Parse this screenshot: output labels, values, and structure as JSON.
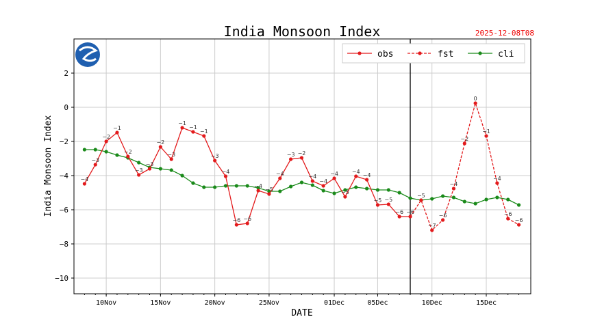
{
  "chart_data": {
    "type": "line",
    "title": "India Monsoon Index",
    "timestamp": "2025-12-08T08",
    "xlabel": "DATE",
    "ylabel": "India Monsoon Index",
    "ylim": [
      -10.92,
      4.0
    ],
    "xlim_days_from_10Nov": [
      -2.97,
      39.1
    ],
    "yticks": [
      2,
      0,
      -2,
      -4,
      -6,
      -8,
      -10
    ],
    "xticks": [
      {
        "day": 0,
        "label": "10Nov"
      },
      {
        "day": 5,
        "label": "15Nov"
      },
      {
        "day": 10,
        "label": "20Nov"
      },
      {
        "day": 15,
        "label": "25Nov"
      },
      {
        "day": 21,
        "label": "01Dec"
      },
      {
        "day": 25,
        "label": "05Dec"
      },
      {
        "day": 30,
        "label": "10Dec"
      },
      {
        "day": 35,
        "label": "15Dec"
      }
    ],
    "grid": true,
    "legend_position": "top-right",
    "vline_day": 28,
    "vline_label_date": "08Dec",
    "series": [
      {
        "name": "obs",
        "color": "#e31a1c",
        "dash": false,
        "start_day": -2,
        "values": [
          -4.48,
          -3.36,
          -2.0,
          -1.48,
          -2.88,
          -3.96,
          -3.6,
          -2.32,
          -3.04,
          -1.2,
          -1.44,
          -1.68,
          -3.12,
          -4.04,
          -6.88,
          -6.8,
          -4.88,
          -5.08,
          -4.16,
          -3.04,
          -2.96,
          -4.32,
          -4.6,
          -4.16,
          -5.24,
          -4.04,
          -4.24,
          -5.72,
          -5.68,
          -6.4,
          -6.4
        ]
      },
      {
        "name": "fst",
        "color": "#e31a1c",
        "dash": true,
        "start_day": 28,
        "values": [
          -6.4,
          -5.44,
          -7.2,
          -6.6,
          -4.76,
          -2.12,
          0.24,
          -1.68,
          -4.44,
          -6.52,
          -6.88
        ]
      },
      {
        "name": "cli",
        "color": "#1a8a1a",
        "dash": false,
        "start_day": -2,
        "values": [
          -2.48,
          -2.48,
          -2.6,
          -2.8,
          -2.96,
          -3.24,
          -3.52,
          -3.6,
          -3.68,
          -4.0,
          -4.44,
          -4.68,
          -4.68,
          -4.6,
          -4.6,
          -4.6,
          -4.72,
          -4.92,
          -4.92,
          -4.64,
          -4.4,
          -4.56,
          -4.88,
          -5.04,
          -4.84,
          -4.68,
          -4.76,
          -4.84,
          -4.84,
          -5.0,
          -5.32,
          -5.44,
          -5.36,
          -5.2,
          -5.28,
          -5.52,
          -5.64,
          -5.4,
          -5.28,
          -5.4,
          -5.72
        ]
      }
    ]
  }
}
